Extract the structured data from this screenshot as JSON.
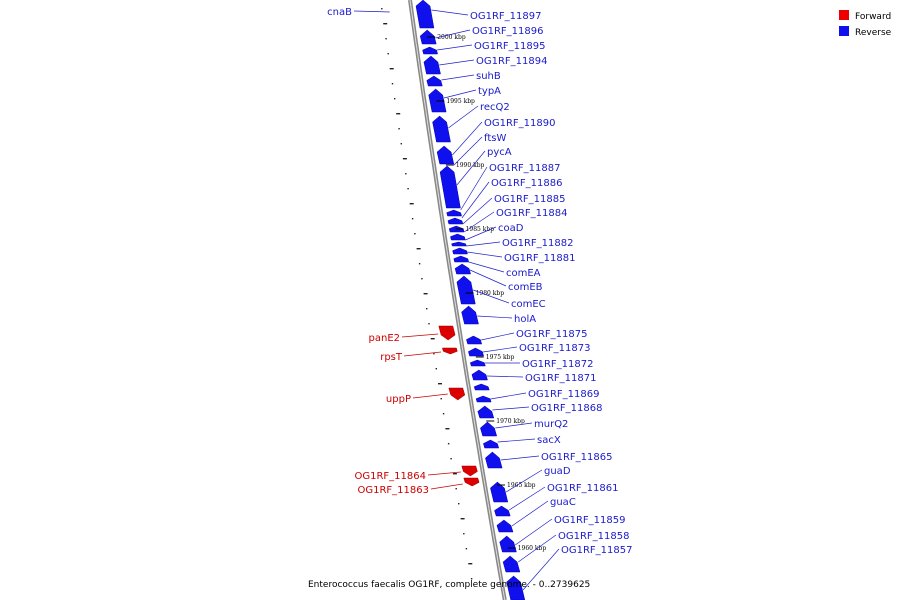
{
  "caption": "Enterococcus faecalis OG1RF, complete genome. - 0..2739625",
  "colors": {
    "forward": "#dd0000",
    "reverse": "#1010ee",
    "backbone": "#777777",
    "leader": "#2020cc"
  },
  "legend": [
    {
      "label": "Forward",
      "color": "#ee0000"
    },
    {
      "label": "Reverse",
      "color": "#1010ee"
    }
  ],
  "scale_ticks": [
    "2000 kbp",
    "1995 kbp",
    "1990 kbp",
    "1985 kbp",
    "1980 kbp",
    "1975 kbp",
    "1970 kbp",
    "1965 kbp",
    "1960 kbp"
  ],
  "reverse_genes": [
    "OG1RF_11897",
    "OG1RF_11896",
    "OG1RF_11895",
    "OG1RF_11894",
    "suhB",
    "typA",
    "recQ2",
    "OG1RF_11890",
    "ftsW",
    "pycA",
    "OG1RF_11887",
    "OG1RF_11886",
    "OG1RF_11885",
    "OG1RF_11884",
    "coaD",
    "OG1RF_11882",
    "OG1RF_11881",
    "comEA",
    "comEB",
    "comEC",
    "holA",
    "OG1RF_11875",
    "OG1RF_11873",
    "OG1RF_11872",
    "OG1RF_11871",
    "OG1RF_11869",
    "OG1RF_11868",
    "murQ2",
    "sacX",
    "OG1RF_11865",
    "guaD",
    "OG1RF_11861",
    "guaC",
    "OG1RF_11859",
    "OG1RF_11858",
    "OG1RF_11857"
  ],
  "left_genes": [
    {
      "label": "cnaB",
      "strand": "reverse"
    },
    {
      "label": "panE2",
      "strand": "forward"
    },
    {
      "label": "rpsT",
      "strand": "forward"
    },
    {
      "label": "uppP",
      "strand": "forward"
    },
    {
      "label": "OG1RF_11864",
      "strand": "forward"
    },
    {
      "label": "OG1RF_11863",
      "strand": "forward"
    }
  ]
}
